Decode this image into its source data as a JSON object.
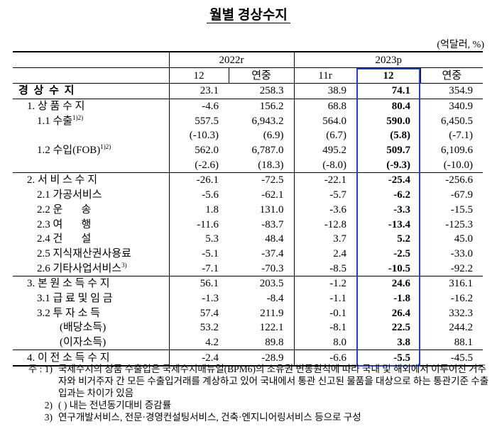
{
  "title": "월별 경상수지",
  "unit": "(억달러, %)",
  "table": {
    "groups": [
      "2022r",
      "2023p"
    ],
    "columns": [
      "12",
      "연중",
      "11r",
      "12",
      "연중"
    ],
    "rows": [
      {
        "label": "경 상 수 지",
        "cells": [
          "23.1",
          "258.3",
          "38.9",
          "74.1",
          "354.9"
        ]
      },
      {
        "label": "1. 상 품 수 지",
        "cells": [
          "-4.6",
          "156.2",
          "68.8",
          "80.4",
          "340.9"
        ]
      },
      {
        "label": "1.1 수출",
        "sup": "1)2)",
        "cells": [
          "557.5",
          "6,943.2",
          "564.0",
          "590.0",
          "6,450.5"
        ]
      },
      {
        "cells": [
          "(-10.3)",
          "(6.9)",
          "(6.7)",
          "(5.8)",
          "(-7.1)"
        ]
      },
      {
        "label": "1.2 수입(FOB)",
        "sup": "1)2)",
        "cells": [
          "562.0",
          "6,787.0",
          "495.2",
          "509.7",
          "6,109.6"
        ]
      },
      {
        "cells": [
          "(-2.6)",
          "(18.3)",
          "(-8.0)",
          "(-9.3)",
          "(-10.0)"
        ]
      },
      {
        "label": "2. 서 비 스 수 지",
        "cells": [
          "-26.1",
          "-72.5",
          "-22.1",
          "-25.4",
          "-256.6"
        ]
      },
      {
        "label": "2.1 가공서비스",
        "cells": [
          "-5.6",
          "-62.1",
          "-5.7",
          "-6.2",
          "-67.9"
        ]
      },
      {
        "label": "2.2 운       송",
        "cells": [
          "1.8",
          "131.0",
          "-3.6",
          "-3.3",
          "-15.5"
        ]
      },
      {
        "label": "2.3 여       행",
        "cells": [
          "-11.6",
          "-83.7",
          "-12.8",
          "-13.4",
          "-125.3"
        ]
      },
      {
        "label": "2.4 건       설",
        "cells": [
          "5.3",
          "48.4",
          "3.7",
          "5.2",
          "45.0"
        ]
      },
      {
        "label": "2.5 지식재산권사용료",
        "cells": [
          "-5.1",
          "-37.4",
          "2.4",
          "-2.5",
          "-33.0"
        ]
      },
      {
        "label": "2.6 기타사업서비스",
        "sup": "3)",
        "cells": [
          "-7.1",
          "-70.3",
          "-8.5",
          "-10.5",
          "-92.2"
        ]
      },
      {
        "label": "3. 본 원 소 득 수 지",
        "cells": [
          "56.1",
          "203.5",
          "-1.2",
          "24.6",
          "316.1"
        ]
      },
      {
        "label": "3.1 급 료 및 임 금",
        "cells": [
          "-1.3",
          "-8.4",
          "-1.1",
          "-1.8",
          "-16.2"
        ]
      },
      {
        "label": "3.2 투 자 소 득",
        "cells": [
          "57.4",
          "211.9",
          "-0.1",
          "26.4",
          "332.3"
        ]
      },
      {
        "label": "(배당소득)",
        "cells": [
          "53.2",
          "122.1",
          "-8.1",
          "22.5",
          "244.2"
        ]
      },
      {
        "label": "(이자소득)",
        "cells": [
          "4.2",
          "89.8",
          "8.0",
          "3.8",
          "88.1"
        ]
      },
      {
        "label": "4. 이 전 소 득 수 지",
        "cells": [
          "-2.4",
          "-28.9",
          "-6.6",
          "-5.5",
          "-45.5"
        ]
      }
    ]
  },
  "notes": [
    {
      "mark": "주 : 1)",
      "text": "국제수지의 상품 수출입은 국제수지매뉴얼(BPM6)의 소유권 변동원칙에 따라 국내 및 해외에서 이루어진 거주자와 비거주자 간 모든 수출입거래를 계상하고 있어 국내에서 통관 신고된 물품을 대상으로 하는 통관기준 수출입과는 차이가 있음"
    },
    {
      "mark": "2)",
      "text": "( ) 내는 전년동기대비 증감률"
    },
    {
      "mark": "3)",
      "text": "연구개발서비스, 전문·경영컨설팅서비스, 건축·엔지니어링서비스 등으로 구성"
    }
  ]
}
